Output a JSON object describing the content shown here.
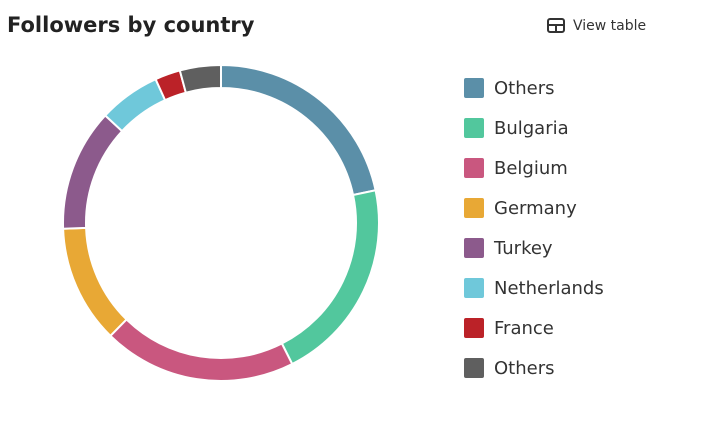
{
  "chart_data": {
    "type": "donut",
    "title": "Followers by country",
    "categories": [
      "Others",
      "Bulgaria",
      "Belgium",
      "Germany",
      "Turkey",
      "Netherlands",
      "France",
      "Others"
    ],
    "values": [
      21.7,
      20.9,
      19.8,
      12.1,
      12.5,
      6.3,
      2.6,
      4.2
    ],
    "colors": [
      "#5b8fa8",
      "#52c79d",
      "#c9577f",
      "#e8a835",
      "#8c5a8c",
      "#6fc8da",
      "#bb2228",
      "#5f5f5f"
    ],
    "legend": "right"
  },
  "toolbar": {
    "button": "View table"
  }
}
